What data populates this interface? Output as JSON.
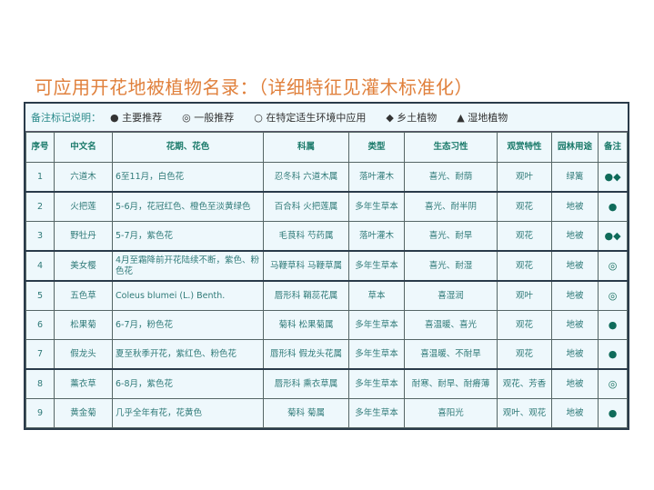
{
  "title": "可应用开花地被植物名录：（详细特征见灌木标准化）",
  "legend": {
    "label": "备注标记说明：",
    "items": [
      "● 主要推荐",
      "◎ 一般推荐",
      "○ 在特定适生环境中应用",
      "◆ 乡土植物",
      "▲ 湿地植物"
    ]
  },
  "headers": [
    "序号",
    "中文名",
    "花期、花色",
    "科属",
    "类型",
    "生态习性",
    "观赏特性",
    "园林用途",
    "备注"
  ],
  "rows": [
    [
      "1",
      "六道木",
      "6至11月，白色花",
      "忍冬科 六道木属",
      "落叶灌木",
      "喜光、耐荫",
      "观叶",
      "绿篱",
      "●◆"
    ],
    [
      "2",
      "火把莲",
      "5-6月，花冠红色、橙色至淡黄绿色",
      "百合科 火把莲属",
      "多年生草本",
      "喜光、耐半阴",
      "观花",
      "地被",
      "●"
    ],
    [
      "3",
      "野牡丹",
      "5-7月，紫色花",
      "毛茛科 芍药属",
      "落叶灌木",
      "喜光、耐旱",
      "观花",
      "地被",
      "●◆"
    ],
    [
      "4",
      "美女樱",
      "4月至霜降前开花陆续不断，紫色、粉色花",
      "马鞭草科 马鞭草属",
      "多年生草本",
      "喜光、耐湿",
      "观花",
      "地被",
      "◎"
    ],
    [
      "5",
      "五色草",
      "Coleus blumei (L.) Benth.",
      "唇形科 鞘蕊花属",
      "草本",
      "喜湿润",
      "观叶",
      "地被",
      "◎"
    ],
    [
      "6",
      "松果菊",
      "6-7月，粉色花",
      "菊科 松果菊属",
      "多年生草本",
      "喜温暖、喜光",
      "观花",
      "地被",
      "●"
    ],
    [
      "7",
      "假龙头",
      "夏至秋季开花，紫红色、粉色花",
      "唇形科 假龙头花属",
      "多年生草本",
      "喜温暖、不耐旱",
      "观花",
      "地被",
      "●"
    ],
    [
      "8",
      "薰衣草",
      "6-8月，紫色花",
      "唇形科 熏衣草属",
      "多年生草本",
      "耐寒、耐旱、耐瘠薄",
      "观花、芳香",
      "地被",
      "◎"
    ],
    [
      "9",
      "黄金菊",
      "几乎全年有花，花黄色",
      "菊科 菊属",
      "多年生草本",
      "喜阳光",
      "观叶、观花",
      "地被",
      "●"
    ]
  ],
  "colors": {
    "title": "#e0803c",
    "text": "#2f7a78",
    "background": "#eef8fc",
    "marker": "#0f6b5a"
  }
}
